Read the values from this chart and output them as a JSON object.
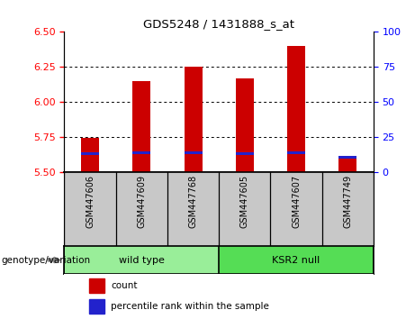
{
  "title": "GDS5248 / 1431888_s_at",
  "samples": [
    "GSM447606",
    "GSM447609",
    "GSM447768",
    "GSM447605",
    "GSM447607",
    "GSM447749"
  ],
  "groups": [
    "wild type",
    "wild type",
    "wild type",
    "KSR2 null",
    "KSR2 null",
    "KSR2 null"
  ],
  "bar_values": [
    5.748,
    6.148,
    6.253,
    6.167,
    6.403,
    5.617
  ],
  "blue_values": [
    5.632,
    5.638,
    5.64,
    5.632,
    5.64,
    5.608
  ],
  "bar_bottom": 5.5,
  "ylim_left": [
    5.5,
    6.5
  ],
  "ylim_right": [
    0,
    100
  ],
  "yticks_left": [
    5.5,
    5.75,
    6.0,
    6.25,
    6.5
  ],
  "yticks_right": [
    0,
    25,
    50,
    75,
    100
  ],
  "bar_color": "#cc0000",
  "blue_color": "#2222cc",
  "wt_color": "#99ee99",
  "ksr_color": "#55dd55",
  "tick_label_bg": "#c8c8c8",
  "bar_width": 0.35,
  "legend_count_label": "count",
  "legend_percentile_label": "percentile rank within the sample",
  "genotype_label": "genotype/variation"
}
